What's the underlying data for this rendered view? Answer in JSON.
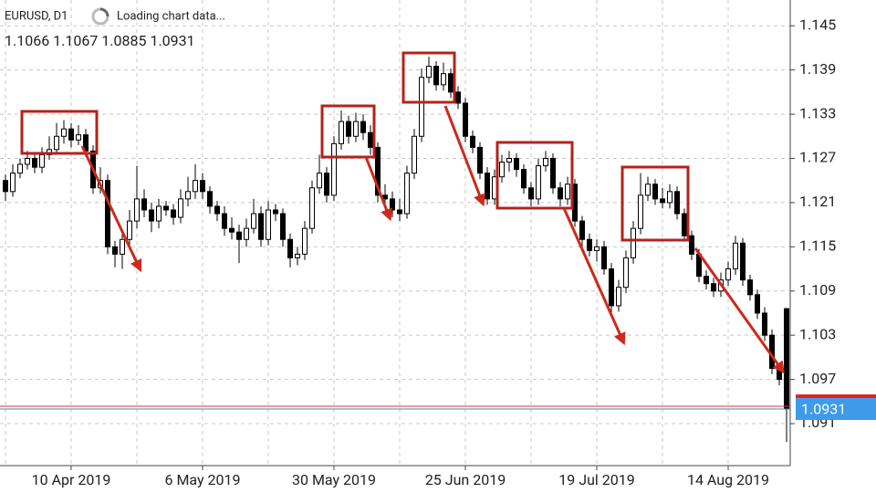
{
  "chart_data": {
    "type": "candlestick",
    "symbol": "EURUSD, D1",
    "status": "Loading chart data...",
    "info": "1.1066 1.1067 1.0885 1.0931",
    "ylim": [
      1.0853,
      1.1485
    ],
    "yticks": [
      1.145,
      1.139,
      1.133,
      1.127,
      1.121,
      1.115,
      1.109,
      1.103,
      1.097,
      1.091
    ],
    "grid": true,
    "up_color": "#ffffff",
    "down_color": "#000000",
    "wick_color": "#000000",
    "current_price": 1.0931,
    "categories": [
      null,
      null,
      null,
      null,
      null,
      null,
      null,
      null,
      null,
      "10 Apr 2019",
      null,
      null,
      null,
      null,
      null,
      null,
      null,
      null,
      null,
      null,
      null,
      null,
      null,
      null,
      null,
      null,
      null,
      "6 May 2019",
      null,
      null,
      null,
      null,
      null,
      null,
      null,
      null,
      null,
      null,
      null,
      null,
      null,
      null,
      null,
      null,
      null,
      "30 May 2019",
      null,
      null,
      null,
      null,
      null,
      null,
      null,
      null,
      null,
      null,
      null,
      null,
      null,
      null,
      null,
      null,
      null,
      "25 Jun 2019",
      null,
      null,
      null,
      null,
      null,
      null,
      null,
      null,
      null,
      null,
      null,
      null,
      null,
      null,
      null,
      null,
      null,
      "19 Jul 2019",
      null,
      null,
      null,
      null,
      null,
      null,
      null,
      null,
      null,
      null,
      null,
      null,
      null,
      null,
      null,
      null,
      null,
      "14 Aug 2019",
      null,
      null,
      null,
      null,
      null,
      null,
      null,
      null
    ],
    "ohlc": [
      [
        1.124,
        1.1248,
        1.1212,
        1.1225
      ],
      [
        1.1225,
        1.1262,
        1.1218,
        1.125
      ],
      [
        1.125,
        1.127,
        1.1243,
        1.1262
      ],
      [
        1.1262,
        1.128,
        1.1255,
        1.127
      ],
      [
        1.127,
        1.1277,
        1.125,
        1.1258
      ],
      [
        1.1258,
        1.1285,
        1.125,
        1.1275
      ],
      [
        1.1275,
        1.13,
        1.1268,
        1.1282
      ],
      [
        1.1282,
        1.1318,
        1.1275,
        1.13
      ],
      [
        1.13,
        1.1322,
        1.129,
        1.131
      ],
      [
        1.131,
        1.1318,
        1.1285,
        1.1295
      ],
      [
        1.1295,
        1.1315,
        1.1288,
        1.1302
      ],
      [
        1.1302,
        1.131,
        1.1272,
        1.128
      ],
      [
        1.128,
        1.1288,
        1.1222,
        1.123
      ],
      [
        1.123,
        1.1258,
        1.1222,
        1.124
      ],
      [
        1.124,
        1.1248,
        1.114,
        1.115
      ],
      [
        1.115,
        1.1158,
        1.1122,
        1.114
      ],
      [
        1.114,
        1.117,
        1.112,
        1.116
      ],
      [
        1.116,
        1.12,
        1.1152,
        1.1185
      ],
      [
        1.1185,
        1.126,
        1.1175,
        1.1215
      ],
      [
        1.1215,
        1.1228,
        1.119,
        1.12
      ],
      [
        1.12,
        1.121,
        1.117,
        1.1185
      ],
      [
        1.1185,
        1.1215,
        1.1175,
        1.1205
      ],
      [
        1.1205,
        1.1212,
        1.1192,
        1.12
      ],
      [
        1.12,
        1.1208,
        1.118,
        1.119
      ],
      [
        1.119,
        1.1228,
        1.1182,
        1.1215
      ],
      [
        1.1215,
        1.1245,
        1.1205,
        1.1225
      ],
      [
        1.1225,
        1.1262,
        1.1215,
        1.124
      ],
      [
        1.124,
        1.125,
        1.1215,
        1.1225
      ],
      [
        1.1225,
        1.1232,
        1.1195,
        1.1205
      ],
      [
        1.1205,
        1.1212,
        1.1185,
        1.1195
      ],
      [
        1.1195,
        1.1205,
        1.1165,
        1.1175
      ],
      [
        1.1175,
        1.119,
        1.116,
        1.117
      ],
      [
        1.117,
        1.118,
        1.1128,
        1.116
      ],
      [
        1.116,
        1.1188,
        1.115,
        1.1175
      ],
      [
        1.1175,
        1.1215,
        1.1168,
        1.1195
      ],
      [
        1.1195,
        1.1205,
        1.115,
        1.116
      ],
      [
        1.116,
        1.1212,
        1.1152,
        1.12
      ],
      [
        1.12,
        1.1208,
        1.1185,
        1.1195
      ],
      [
        1.1195,
        1.1202,
        1.115,
        1.116
      ],
      [
        1.116,
        1.1168,
        1.1122,
        1.1135
      ],
      [
        1.1135,
        1.115,
        1.1125,
        1.114
      ],
      [
        1.114,
        1.1185,
        1.1132,
        1.1175
      ],
      [
        1.1175,
        1.124,
        1.1168,
        1.123
      ],
      [
        1.123,
        1.1275,
        1.1222,
        1.125
      ],
      [
        1.125,
        1.1258,
        1.121,
        1.122
      ],
      [
        1.122,
        1.13,
        1.1212,
        1.129
      ],
      [
        1.129,
        1.1335,
        1.1282,
        1.132
      ],
      [
        1.132,
        1.1328,
        1.129,
        1.13
      ],
      [
        1.13,
        1.1332,
        1.1292,
        1.132
      ],
      [
        1.132,
        1.133,
        1.1295,
        1.1305
      ],
      [
        1.1305,
        1.1315,
        1.1275,
        1.1285
      ],
      [
        1.1285,
        1.1292,
        1.121,
        1.122
      ],
      [
        1.122,
        1.1235,
        1.1205,
        1.1215
      ],
      [
        1.1215,
        1.1225,
        1.119,
        1.12
      ],
      [
        1.12,
        1.1215,
        1.1185,
        1.1195
      ],
      [
        1.1195,
        1.126,
        1.1188,
        1.125
      ],
      [
        1.125,
        1.131,
        1.1242,
        1.13
      ],
      [
        1.13,
        1.1392,
        1.1292,
        1.138
      ],
      [
        1.138,
        1.1408,
        1.1372,
        1.1395
      ],
      [
        1.1395,
        1.1402,
        1.1362,
        1.137
      ],
      [
        1.137,
        1.14,
        1.1362,
        1.1385
      ],
      [
        1.1385,
        1.1392,
        1.1352,
        1.136
      ],
      [
        1.136,
        1.1368,
        1.1337,
        1.1345
      ],
      [
        1.1345,
        1.1352,
        1.1292,
        1.13
      ],
      [
        1.13,
        1.1308,
        1.1277,
        1.1285
      ],
      [
        1.1285,
        1.1292,
        1.1242,
        1.125
      ],
      [
        1.125,
        1.1258,
        1.1207,
        1.1215
      ],
      [
        1.1215,
        1.1255,
        1.1207,
        1.1245
      ],
      [
        1.1245,
        1.1275,
        1.1237,
        1.1265
      ],
      [
        1.1265,
        1.128,
        1.1252,
        1.127
      ],
      [
        1.127,
        1.1277,
        1.1245,
        1.1255
      ],
      [
        1.1255,
        1.1262,
        1.1222,
        1.123
      ],
      [
        1.123,
        1.1238,
        1.1205,
        1.1215
      ],
      [
        1.1215,
        1.127,
        1.1207,
        1.126
      ],
      [
        1.126,
        1.128,
        1.1252,
        1.127
      ],
      [
        1.127,
        1.1277,
        1.1222,
        1.123
      ],
      [
        1.123,
        1.1238,
        1.1205,
        1.1215
      ],
      [
        1.1215,
        1.1245,
        1.1207,
        1.1235
      ],
      [
        1.1235,
        1.1242,
        1.1177,
        1.1185
      ],
      [
        1.1185,
        1.1192,
        1.115,
        1.116
      ],
      [
        1.116,
        1.1168,
        1.1137,
        1.1145
      ],
      [
        1.1145,
        1.116,
        1.113,
        1.115
      ],
      [
        1.115,
        1.1158,
        1.1112,
        1.112
      ],
      [
        1.112,
        1.1128,
        1.106,
        1.107
      ],
      [
        1.107,
        1.1105,
        1.1062,
        1.1095
      ],
      [
        1.1095,
        1.1145,
        1.1087,
        1.1135
      ],
      [
        1.1135,
        1.1185,
        1.1127,
        1.1175
      ],
      [
        1.1175,
        1.125,
        1.1167,
        1.122
      ],
      [
        1.122,
        1.1245,
        1.1212,
        1.1235
      ],
      [
        1.1235,
        1.1242,
        1.1207,
        1.1215
      ],
      [
        1.1215,
        1.123,
        1.1202,
        1.121
      ],
      [
        1.121,
        1.1235,
        1.1202,
        1.1225
      ],
      [
        1.1225,
        1.1232,
        1.1187,
        1.1195
      ],
      [
        1.1195,
        1.1202,
        1.1157,
        1.1165
      ],
      [
        1.1165,
        1.1172,
        1.1132,
        1.114
      ],
      [
        1.114,
        1.1147,
        1.1102,
        1.111
      ],
      [
        1.111,
        1.1118,
        1.1092,
        1.11
      ],
      [
        1.11,
        1.1108,
        1.1082,
        1.109
      ],
      [
        1.109,
        1.1115,
        1.1082,
        1.1105
      ],
      [
        1.1105,
        1.113,
        1.1097,
        1.112
      ],
      [
        1.112,
        1.1165,
        1.1112,
        1.1155
      ],
      [
        1.1155,
        1.1162,
        1.1097,
        1.1105
      ],
      [
        1.1105,
        1.1112,
        1.1077,
        1.1085
      ],
      [
        1.1085,
        1.1092,
        1.1052,
        1.106
      ],
      [
        1.106,
        1.1068,
        1.1022,
        1.103
      ],
      [
        1.103,
        1.1038,
        1.0977,
        1.0985
      ],
      [
        1.0985,
        1.0992,
        1.0962,
        1.097
      ],
      [
        1.1066,
        1.1067,
        1.0885,
        1.0931
      ]
    ]
  }
}
